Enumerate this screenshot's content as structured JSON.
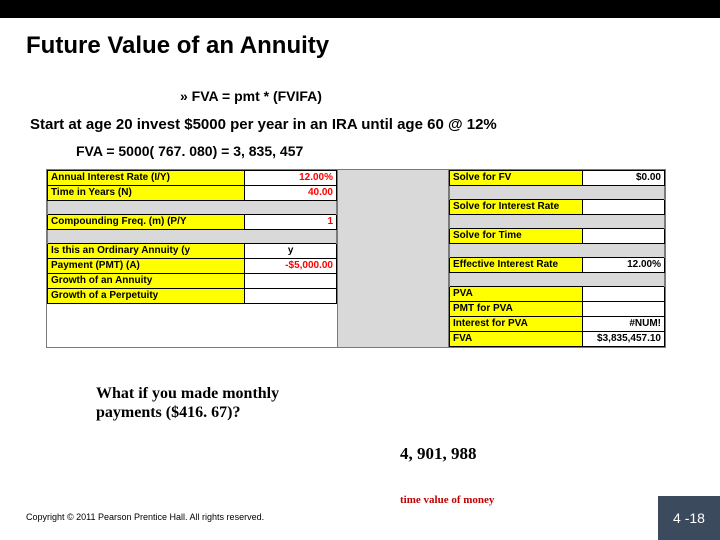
{
  "title": "Future Value of an Annuity",
  "formula": "»  FVA = pmt * (FVIFA)",
  "scenario": "Start at age 20  invest $5000 per year in an IRA until age 60 @ 12%",
  "calc": "FVA = 5000( 767. 080) = 3, 835, 457",
  "left_rows": [
    {
      "label": "Annual Interest Rate (I/Y)",
      "val": "12.00%",
      "red": true,
      "gap_after": false
    },
    {
      "label": "Time in Years (N)",
      "val": "40.00",
      "red": true,
      "gap_after": true
    },
    {
      "label": "Compounding Freq. (m) (P/Y",
      "val": "1",
      "red": true,
      "gap_after": true
    },
    {
      "label": "Is this an Ordinary Annuity (y",
      "val": "y",
      "red": false,
      "gap_after": false,
      "center": true
    },
    {
      "label": "Payment (PMT) (A)",
      "val": "-$5,000.00",
      "red": true,
      "gap_after": false
    },
    {
      "label": "Growth of an Annuity",
      "val": "",
      "red": false,
      "gap_after": false
    },
    {
      "label": "Growth of a Perpetuity",
      "val": "",
      "red": false,
      "gap_after": false
    }
  ],
  "right_rows": [
    {
      "label": "Solve for FV",
      "val": "$0.00",
      "gap_after": true
    },
    {
      "label": "Solve for Interest Rate",
      "val": "",
      "gap_after": true
    },
    {
      "label": "Solve for Time",
      "val": "",
      "gap_after": true
    },
    {
      "label": "Effective Interest Rate",
      "val": "12.00%",
      "gap_after": true
    },
    {
      "label": "PVA",
      "val": "",
      "gap_after": false
    },
    {
      "label": "PMT for PVA",
      "val": "",
      "gap_after": false
    },
    {
      "label": "Interest for PVA",
      "val": "#NUM!",
      "gap_after": false
    },
    {
      "label": "FVA",
      "val": "$3,835,457.10",
      "gap_after": false
    }
  ],
  "question": "What if you made monthly payments ($416. 67)?",
  "answer": "4, 901, 988",
  "subtitle": "time value of money",
  "copyright": "Copyright © 2011 Pearson Prentice Hall. All rights reserved.",
  "slide_num": "4 -18",
  "colors": {
    "highlight_bg": "#ffff00",
    "gap_bg": "#d9d9d9",
    "red_text": "#ff0000",
    "slidenum_bg": "#3b4a5c",
    "subtitle_color": "#c00000"
  }
}
